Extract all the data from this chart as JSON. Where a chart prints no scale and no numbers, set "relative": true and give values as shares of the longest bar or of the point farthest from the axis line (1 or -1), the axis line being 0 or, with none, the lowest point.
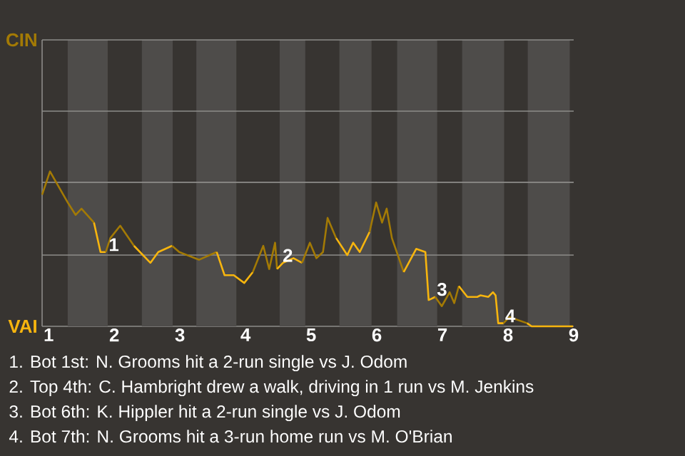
{
  "chart_data": {
    "type": "line",
    "relative": true,
    "xlim": [
      0.9,
      9
    ],
    "xticks": [
      1,
      2,
      3,
      4,
      5,
      6,
      7,
      8,
      9
    ],
    "ref_lines": [
      {
        "axis": "y",
        "value": 0.46,
        "color": "#8e8c8a"
      },
      {
        "axis": "y",
        "value": 0.93,
        "color": "#8e8c8a"
      },
      {
        "axis": "y",
        "value": 1.39,
        "color": "#8e8c8a"
      },
      {
        "axis": "y",
        "value": 1.85,
        "color": "#8e8c8a"
      }
    ],
    "bands": [
      {
        "axis": "x",
        "from": 1.29,
        "to": 1.9,
        "color": "#4e4c4a"
      },
      {
        "axis": "x",
        "from": 2.42,
        "to": 2.89,
        "color": "#4e4c4a"
      },
      {
        "axis": "x",
        "from": 3.25,
        "to": 3.86,
        "color": "#4e4c4a"
      },
      {
        "axis": "x",
        "from": 4.52,
        "to": 4.91,
        "color": "#4e4c4a"
      },
      {
        "axis": "x",
        "from": 5.43,
        "to": 5.92,
        "color": "#4e4c4a"
      },
      {
        "axis": "x",
        "from": 6.31,
        "to": 6.92,
        "color": "#4e4c4a"
      },
      {
        "axis": "x",
        "from": 7.3,
        "to": 7.94,
        "color": "#4e4c4a"
      },
      {
        "axis": "x",
        "from": 8.3,
        "to": 8.94,
        "color": "#4e4c4a"
      }
    ],
    "series": [
      {
        "color": "#a37a05",
        "x": [
          0.9,
          1.02,
          1.29,
          1.41,
          1.5,
          1.69
        ],
        "values": [
          0.85,
          1,
          0.8,
          0.72,
          0.76,
          0.67
        ]
      },
      {
        "color": "#f7b50e",
        "x": [
          1.69,
          1.79,
          1.87
        ],
        "values": [
          0.67,
          0.48,
          0.48
        ]
      },
      {
        "color": "#a37a05",
        "x": [
          1.87,
          1.94,
          2.09,
          2.3
        ],
        "values": [
          0.48,
          0.57,
          0.65,
          0.52
        ]
      },
      {
        "color": "#f7b50e",
        "x": [
          2.3,
          2.55,
          2.67,
          2.88
        ],
        "values": [
          0.52,
          0.41,
          0.48,
          0.52
        ]
      },
      {
        "color": "#a37a05",
        "x": [
          2.88,
          2.99,
          3.29,
          3.56
        ],
        "values": [
          0.52,
          0.48,
          0.43,
          0.48
        ]
      },
      {
        "color": "#f7b50e",
        "x": [
          3.56,
          3.68,
          3.82,
          3.98,
          4.11
        ],
        "values": [
          0.48,
          0.33,
          0.33,
          0.28,
          0.35
        ]
      },
      {
        "color": "#a37a05",
        "x": [
          4.11,
          4.27,
          4.36,
          4.45,
          4.48
        ],
        "values": [
          0.35,
          0.52,
          0.37,
          0.54,
          0.37
        ]
      },
      {
        "color": "#f7b50e",
        "x": [
          4.48,
          4.57,
          4.73,
          4.86
        ],
        "values": [
          0.37,
          0.41,
          0.44,
          0.41
        ]
      },
      {
        "color": "#a37a05",
        "x": [
          4.86,
          4.98,
          5.08,
          5.18,
          5.25,
          5.38
        ],
        "values": [
          0.41,
          0.54,
          0.44,
          0.48,
          0.7,
          0.57
        ]
      },
      {
        "color": "#f7b50e",
        "x": [
          5.38,
          5.55,
          5.64,
          5.74,
          5.89
        ],
        "values": [
          0.57,
          0.46,
          0.54,
          0.48,
          0.61
        ]
      },
      {
        "color": "#a37a05",
        "x": [
          5.89,
          5.99,
          6.08,
          6.15,
          6.23,
          6.41
        ],
        "values": [
          0.61,
          0.8,
          0.67,
          0.76,
          0.57,
          0.35
        ]
      },
      {
        "color": "#f7b50e",
        "x": [
          6.41,
          6.6,
          6.74,
          6.79,
          6.89
        ],
        "values": [
          0.35,
          0.5,
          0.48,
          0.17,
          0.19
        ]
      },
      {
        "color": "#a37a05",
        "x": [
          6.89,
          6.99,
          7.11,
          7.18,
          7.25
        ],
        "values": [
          0.19,
          0.13,
          0.22,
          0.15,
          0.26
        ]
      },
      {
        "color": "#f7b50e",
        "x": [
          7.25,
          7.38,
          7.53,
          7.58,
          7.7,
          7.77,
          7.81,
          7.85,
          7.93
        ],
        "values": [
          0.26,
          0.19,
          0.19,
          0.2,
          0.19,
          0.22,
          0.2,
          0.02,
          0.02
        ]
      },
      {
        "color": "#a37a05",
        "x": [
          7.93,
          8.02,
          8.29
        ],
        "values": [
          0.02,
          0.06,
          0.02
        ]
      },
      {
        "color": "#f7b50e",
        "x": [
          8.29,
          8.36,
          8.99
        ],
        "values": [
          0.02,
          0,
          0
        ]
      }
    ],
    "annotations": [
      "CIN",
      "VAI",
      "1. Bot 1st: N. Grooms hit a 2-run single vs J. Odom",
      "2. Top 4th: C. Hambright drew a walk, driving in 1 run vs M. Jenkins",
      "3. Bot 6th: K. Hippler hit a 2-run single vs J. Odom",
      "4. Bot 7th: N. Grooms hit a 3-run home run vs M. O'Brian",
      {
        "text": "1",
        "x": 1.9,
        "y": 0.48
      },
      {
        "text": "2",
        "x": 4.55,
        "y": 0.41
      },
      {
        "text": "3",
        "x": 6.9,
        "y": 0.19
      },
      {
        "text": "4",
        "x": 7.94,
        "y": 0.02
      }
    ]
  }
}
